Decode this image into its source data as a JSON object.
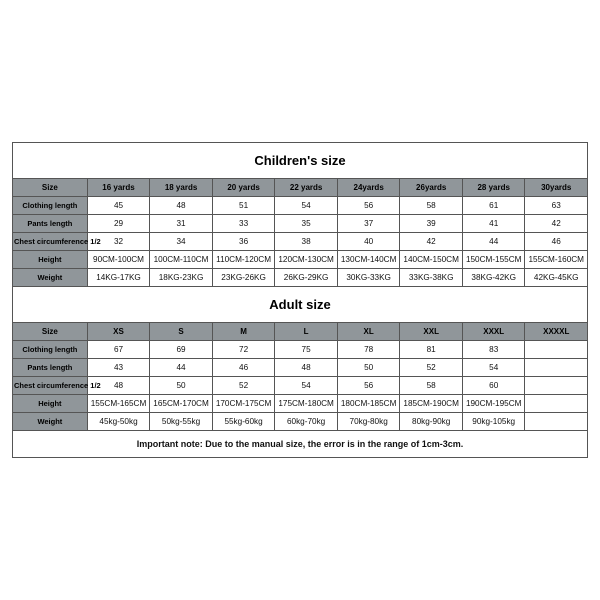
{
  "children": {
    "title": "Children's size",
    "headers": [
      "Size",
      "16 yards",
      "18 yards",
      "20 yards",
      "22 yards",
      "24yards",
      "26yards",
      "28 yards",
      "30yards"
    ],
    "rows": [
      {
        "label": "Clothing length",
        "cells": [
          "45",
          "48",
          "51",
          "54",
          "56",
          "58",
          "61",
          "63"
        ]
      },
      {
        "label": "Pants length",
        "cells": [
          "29",
          "31",
          "33",
          "35",
          "37",
          "39",
          "41",
          "42"
        ]
      },
      {
        "label": "Chest circumference 1/2",
        "cells": [
          "32",
          "34",
          "36",
          "38",
          "40",
          "42",
          "44",
          "46"
        ]
      },
      {
        "label": "Height",
        "cells": [
          "90CM-100CM",
          "100CM-110CM",
          "110CM-120CM",
          "120CM-130CM",
          "130CM-140CM",
          "140CM-150CM",
          "150CM-155CM",
          "155CM-160CM"
        ]
      },
      {
        "label": "Weight",
        "cells": [
          "14KG-17KG",
          "18KG-23KG",
          "23KG-26KG",
          "26KG-29KG",
          "30KG-33KG",
          "33KG-38KG",
          "38KG-42KG",
          "42KG-45KG"
        ]
      }
    ]
  },
  "adult": {
    "title": "Adult size",
    "headers": [
      "Size",
      "XS",
      "S",
      "M",
      "L",
      "XL",
      "XXL",
      "XXXL",
      "XXXXL"
    ],
    "rows": [
      {
        "label": "Clothing length",
        "cells": [
          "67",
          "69",
          "72",
          "75",
          "78",
          "81",
          "83",
          ""
        ]
      },
      {
        "label": "Pants length",
        "cells": [
          "43",
          "44",
          "46",
          "48",
          "50",
          "52",
          "54",
          ""
        ]
      },
      {
        "label": "Chest circumference 1/2",
        "cells": [
          "48",
          "50",
          "52",
          "54",
          "56",
          "58",
          "60",
          ""
        ]
      },
      {
        "label": "Height",
        "cells": [
          "155CM-165CM",
          "165CM-170CM",
          "170CM-175CM",
          "175CM-180CM",
          "180CM-185CM",
          "185CM-190CM",
          "190CM-195CM",
          ""
        ]
      },
      {
        "label": "Weight",
        "cells": [
          "45kg-50kg",
          "50kg-55kg",
          "55kg-60kg",
          "60kg-70kg",
          "70kg-80kg",
          "80kg-90kg",
          "90kg-105kg",
          ""
        ]
      }
    ]
  },
  "note": "Important note: Due to the manual size, the error is in the range of 1cm-3cm.",
  "colors": {
    "header_bg": "#90969a",
    "border": "#555555",
    "background": "#ffffff",
    "text": "#111111"
  },
  "layout": {
    "num_data_cols": 8,
    "label_col_width_pct": 13,
    "data_col_width_pct": 10.875
  }
}
